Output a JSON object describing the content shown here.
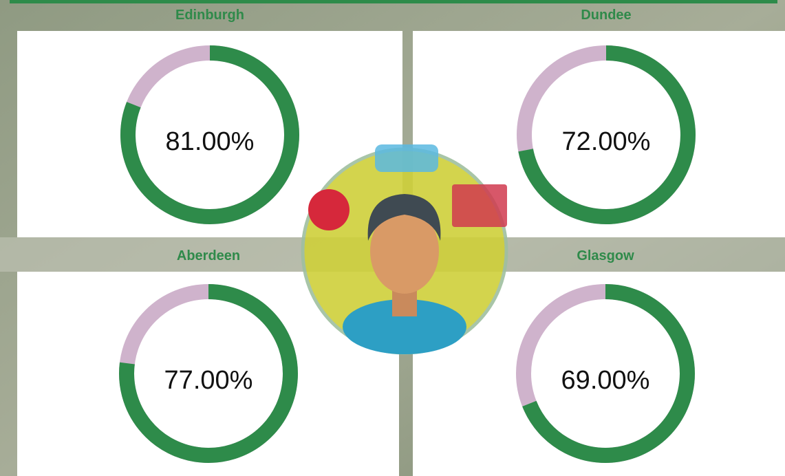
{
  "chart_data": [
    {
      "type": "donut",
      "title": "Edinburgh",
      "values": [
        81
      ],
      "value_labels": [
        "81.00%"
      ],
      "ylim": [
        0,
        100
      ],
      "color": "#2e8b4a",
      "track_color": "#cfb3cc"
    },
    {
      "type": "donut",
      "title": "Dundee",
      "values": [
        72
      ],
      "value_labels": [
        "72.00%"
      ],
      "ylim": [
        0,
        100
      ],
      "color": "#2e8b4a",
      "track_color": "#cfb3cc"
    },
    {
      "type": "donut",
      "title": "Aberdeen",
      "values": [
        77
      ],
      "value_labels": [
        "77.00%"
      ],
      "ylim": [
        0,
        100
      ],
      "color": "#2e8b4a",
      "track_color": "#cfb3cc"
    },
    {
      "type": "donut",
      "title": "Glasgow",
      "values": [
        69
      ],
      "value_labels": [
        "69.00%"
      ],
      "ylim": [
        0,
        100
      ],
      "color": "#2e8b4a",
      "track_color": "#cfb3cc"
    }
  ]
}
